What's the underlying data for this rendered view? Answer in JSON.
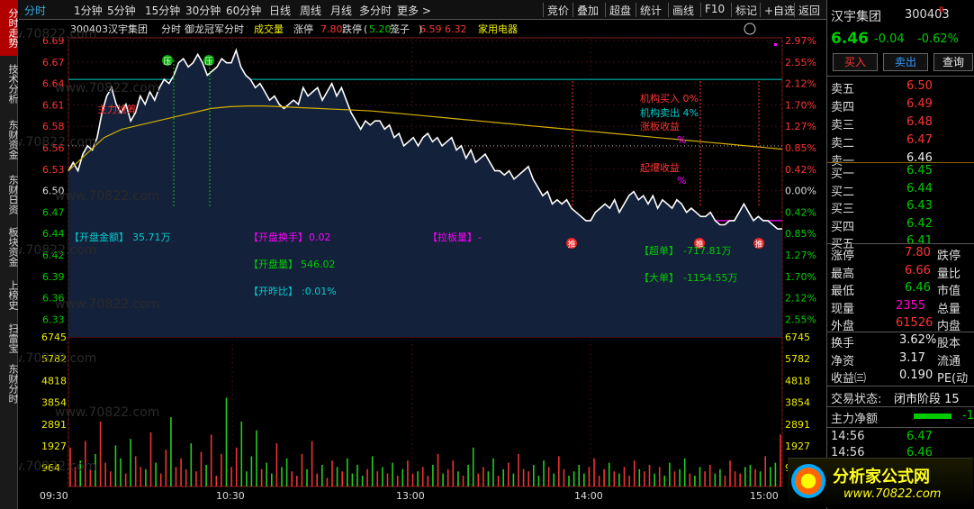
{
  "sidebar": {
    "tabs": [
      {
        "label": "分时走势",
        "active": true
      },
      {
        "label": "技术分析",
        "active": false
      },
      {
        "label": "东财资金",
        "active": false
      },
      {
        "label": "东财日资",
        "active": false
      },
      {
        "label": "板块资金",
        "active": false
      },
      {
        "label": "上榜史",
        "active": false
      },
      {
        "label": "扫雷宝",
        "active": false
      },
      {
        "label": "东财分时",
        "active": false
      }
    ]
  },
  "toolbar": {
    "left": [
      "分时",
      "1分钟",
      "5分钟",
      "15分钟",
      "30分钟",
      "60分钟",
      "日线",
      "周线",
      "月线",
      "多分时",
      "更多 >"
    ],
    "right": [
      "竞价",
      "叠加",
      "超盘",
      "统计",
      "画线",
      "F10",
      "标记",
      "+自选",
      "返回"
    ]
  },
  "chart": {
    "code": "300403",
    "name": "汉宇集团",
    "mode": "分时",
    "indicator": "御龙冠军分时",
    "volume_label": "成交量",
    "limit_up_label": "涨停",
    "limit_up_value": "7.80",
    "limit_down_label": "跌停",
    "limit_down_value": "5.20",
    "cage_label": "笼子",
    "cage_value": "6.59 6.32",
    "sector": "家用电器",
    "price_labels": [
      "6.69",
      "6.67",
      "6.64",
      "6.61",
      "6.58",
      "6.56",
      "6.53",
      "6.50",
      "6.47",
      "6.44",
      "6.42",
      "6.39",
      "6.36",
      "6.33"
    ],
    "pct_labels": [
      "2.97%",
      "2.55%",
      "2.12%",
      "1.70%",
      "1.27%",
      "0.85%",
      "0.42%",
      "0.00%",
      "0.42%",
      "0.85%",
      "1.27%",
      "1.70%",
      "2.12%",
      "2.55%"
    ],
    "vol_labels": [
      "6745",
      "5782",
      "4818",
      "3854",
      "2891",
      "1927",
      "964"
    ],
    "time_labels": [
      "09:30",
      "10:30",
      "13:00",
      "14:00",
      "15:00"
    ],
    "price_series": [
      6.53,
      6.54,
      6.53,
      6.55,
      6.56,
      6.555,
      6.57,
      6.6,
      6.62,
      6.63,
      6.61,
      6.6,
      6.61,
      6.59,
      6.6,
      6.62,
      6.61,
      6.625,
      6.615,
      6.63,
      6.64,
      6.635,
      6.645,
      6.66,
      6.665,
      6.655,
      6.66,
      6.67,
      6.66,
      6.645,
      6.65,
      6.655,
      6.665,
      6.66,
      6.66,
      6.675,
      6.655,
      6.645,
      6.64,
      6.63,
      6.635,
      6.625,
      6.615,
      6.62,
      6.61,
      6.605,
      6.61,
      6.615,
      6.61,
      6.63,
      6.62,
      6.625,
      6.63,
      6.615,
      6.625,
      6.635,
      6.62,
      6.63,
      6.615,
      6.6,
      6.59,
      6.58,
      6.59,
      6.585,
      6.59,
      6.59,
      6.58,
      6.585,
      6.57,
      6.575,
      6.56,
      6.565,
      6.57,
      6.56,
      6.57,
      6.575,
      6.565,
      6.57,
      6.56,
      6.565,
      6.57,
      6.555,
      6.56,
      6.545,
      6.555,
      6.54,
      6.545,
      6.55,
      6.54,
      6.53,
      6.53,
      6.525,
      6.53,
      6.52,
      6.525,
      6.53,
      6.535,
      6.52,
      6.51,
      6.5,
      6.505,
      6.49,
      6.495,
      6.49,
      6.495,
      6.485,
      6.48,
      6.475,
      6.47,
      6.47,
      6.48,
      6.485,
      6.49,
      6.485,
      6.495,
      6.48,
      6.49,
      6.5,
      6.505,
      6.495,
      6.5,
      6.49,
      6.5,
      6.485,
      6.495,
      6.49,
      6.485,
      6.495,
      6.49,
      6.48,
      6.485,
      6.48,
      6.475,
      6.475,
      6.48,
      6.47,
      6.465,
      6.465,
      6.47,
      6.47,
      6.48,
      6.49,
      6.48,
      6.47,
      6.475,
      6.47,
      6.47,
      6.465,
      6.46,
      6.46
    ],
    "avg_series": [
      6.53,
      6.55,
      6.57,
      6.58,
      6.585,
      6.59,
      6.595,
      6.6,
      6.605,
      6.607,
      6.608,
      6.608,
      6.607,
      6.606,
      6.605,
      6.604,
      6.603,
      6.602,
      6.6,
      6.598,
      6.596,
      6.594,
      6.592,
      6.59,
      6.588,
      6.586,
      6.584,
      6.582,
      6.58,
      6.578,
      6.576,
      6.574,
      6.572,
      6.57,
      6.568,
      6.566,
      6.564,
      6.562,
      6.56,
      6.558,
      6.556
    ],
    "ref_lines": {
      "cyan": 6.64,
      "magenta": 6.47
    },
    "badges_ya": [
      "压",
      "压"
    ],
    "badges_tui": [
      "推",
      "推",
      "推"
    ],
    "annotations": {
      "zhuli": "主力抢筹",
      "jigou_buy": "机构买入 0%",
      "jigou_sell": "机构卖出 4%",
      "zhangban": "涨板收益",
      "zhangban_pct": "%",
      "qibao": "起爆收益",
      "qibao_pct": "%"
    },
    "info": {
      "open_amount_label": "【开盘金额】",
      "open_amount": "35.71万",
      "open_turnover_label": "【开盘换手】",
      "open_turnover": "0.02",
      "open_vol_label": "【开盘量】",
      "open_vol": "546.02",
      "open_ratio_label": "【开昨比】",
      "open_ratio": ":0.01%",
      "lift_label": "【拉板量】",
      "lift": "-",
      "super_label": "【超单】",
      "super": "-717.81万",
      "big_label": "【大单】",
      "big": "-1154.55万"
    },
    "volume_series": [
      1800,
      900,
      1200,
      2100,
      800,
      1500,
      3000,
      1100,
      700,
      1900,
      1300,
      600,
      2200,
      1400,
      900,
      800,
      2500,
      1100,
      600,
      1700,
      3200,
      900,
      1300,
      800,
      2000,
      700,
      1600,
      1000,
      2400,
      500,
      1500,
      4100,
      900,
      1800,
      3000,
      700,
      1400,
      2600,
      800,
      1100,
      600,
      2000,
      900,
      1300,
      700,
      500,
      1500,
      800,
      2100,
      600,
      1000,
      400,
      1200,
      900,
      700,
      1300,
      600,
      1000,
      500,
      800,
      1400,
      700,
      900,
      600,
      1100,
      500,
      800,
      1200,
      600,
      700,
      900,
      500,
      1000,
      1500,
      600,
      800,
      1200,
      700,
      500,
      1000,
      1800,
      600,
      900,
      700,
      1300,
      500,
      800,
      1100,
      600,
      1500,
      800,
      700,
      1000,
      500,
      1200,
      900,
      600,
      1400,
      800,
      500,
      700,
      1000,
      600,
      900,
      1300,
      500,
      800,
      1100,
      700,
      600,
      900,
      500,
      1200,
      800,
      700,
      1000,
      600,
      900,
      500,
      1100,
      700,
      800,
      1300,
      600,
      500,
      900,
      700,
      1000,
      600,
      800,
      500,
      1200,
      700,
      600,
      900,
      1000,
      800,
      700,
      1400,
      900,
      1100,
      2400
    ]
  },
  "right": {
    "name": "汉宇集团",
    "code": "300403",
    "tag": "R",
    "price": "6.46",
    "change": "-0.04",
    "change_pct": "-0.62%",
    "buy_btn": "买入",
    "sell_btn": "卖出",
    "query_btn": "查询",
    "asks": [
      {
        "label": "卖五",
        "price": "6.50"
      },
      {
        "label": "卖四",
        "price": "6.49"
      },
      {
        "label": "卖三",
        "price": "6.48"
      },
      {
        "label": "卖二",
        "price": "6.47"
      },
      {
        "label": "卖一",
        "price": "6.46"
      }
    ],
    "bids": [
      {
        "label": "买一",
        "price": "6.45"
      },
      {
        "label": "买二",
        "price": "6.44"
      },
      {
        "label": "买三",
        "price": "6.43"
      },
      {
        "label": "买四",
        "price": "6.42"
      },
      {
        "label": "买五",
        "price": "6.41"
      }
    ],
    "stats": [
      {
        "l": "涨停",
        "v": "7.80",
        "c": "red",
        "r": "跌停"
      },
      {
        "l": "最高",
        "v": "6.66",
        "c": "red",
        "r": "量比"
      },
      {
        "l": "最低",
        "v": "6.46",
        "c": "green",
        "r": "市值"
      },
      {
        "l": "现量",
        "v": "2355",
        "c": "pink",
        "r": "总量"
      },
      {
        "l": "外盘",
        "v": "61526",
        "c": "red",
        "r": "内盘"
      }
    ],
    "stats2": [
      {
        "l": "换手",
        "v": "3.62%",
        "c": "white",
        "r": "股本"
      },
      {
        "l": "净资",
        "v": "3.17",
        "c": "white",
        "r": "流通"
      },
      {
        "l": "收益㈢",
        "v": "0.190",
        "c": "white",
        "r": "PE(动"
      }
    ],
    "trade_status_label": "交易状态:",
    "trade_status": "闭市阶段 15",
    "net_label": "主力净额",
    "net_value": "-1",
    "ticks": [
      {
        "t": "14:56",
        "p": "6.47"
      },
      {
        "t": "14:56",
        "p": "6.46"
      }
    ],
    "logo_text": "分析家公式网",
    "logo_url": "www.70822.com"
  }
}
